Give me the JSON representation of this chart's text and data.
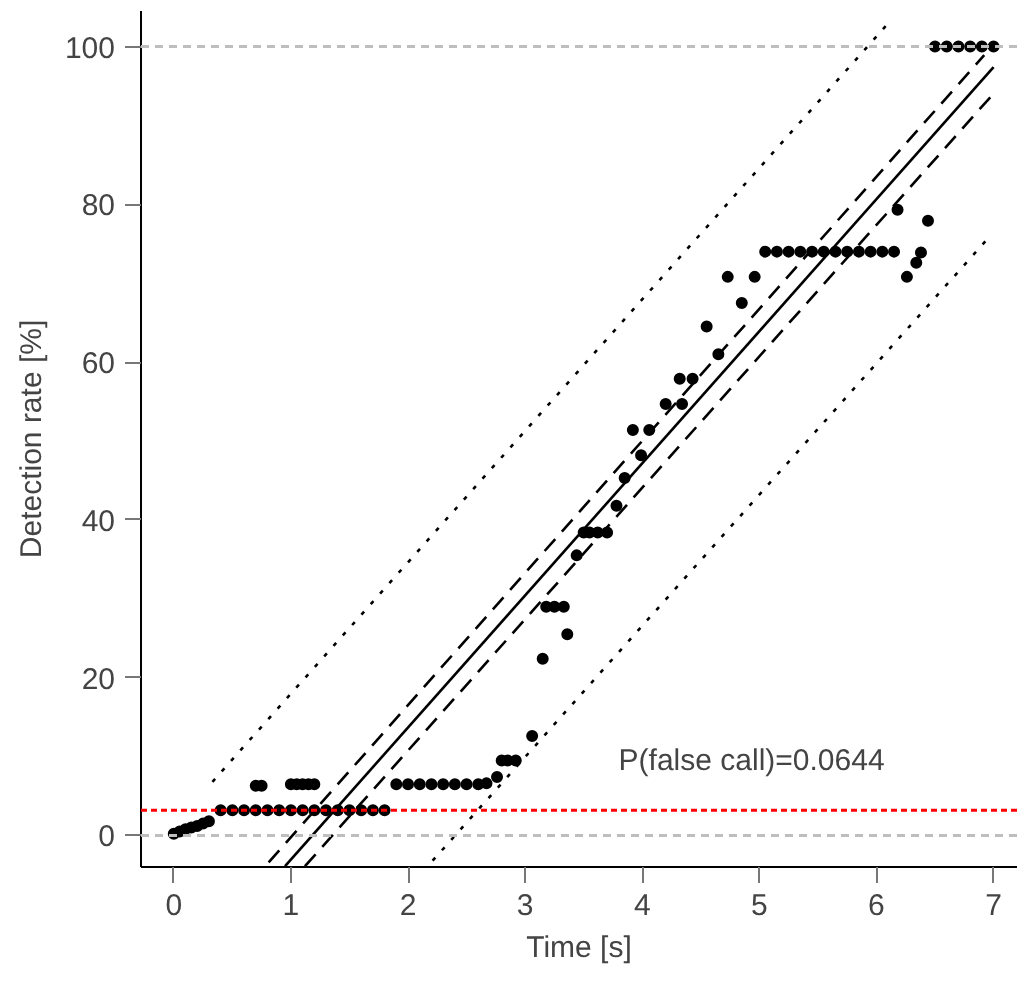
{
  "chart_data": {
    "type": "scatter",
    "xlabel": "Time [s]",
    "ylabel": "Detection rate [%]",
    "xlim": [
      -0.28,
      7.2
    ],
    "ylim": [
      -4,
      104.5
    ],
    "xticks": [
      0,
      1,
      2,
      3,
      4,
      5,
      6,
      7
    ],
    "yticks": [
      0,
      20,
      40,
      60,
      80,
      100
    ],
    "grid": false,
    "annotations": [
      "P(false call)=0.0644"
    ],
    "series": [
      {
        "marker": "circle",
        "color": "#000000",
        "x": [
          0.0,
          0.05,
          0.1,
          0.15,
          0.2,
          0.25,
          0.3,
          0.4,
          0.5,
          0.6,
          0.7,
          0.8,
          0.9,
          1.0,
          1.1,
          1.2,
          1.3,
          1.4,
          1.5,
          1.6,
          1.7,
          1.8,
          0.7,
          0.75,
          1.0,
          1.05,
          1.1,
          1.15,
          1.2,
          1.9,
          2.0,
          2.1,
          2.2,
          2.3,
          2.4,
          2.5,
          2.6,
          2.67,
          2.76,
          2.8,
          2.85,
          2.92,
          3.06,
          3.15,
          3.18,
          3.25,
          3.33,
          3.36,
          3.44,
          3.5,
          3.55,
          3.62,
          3.7,
          3.78,
          3.85,
          3.92,
          3.99,
          4.06,
          4.2,
          4.34,
          4.32,
          4.43,
          4.55,
          4.65,
          4.73,
          4.85,
          4.96,
          5.05,
          5.15,
          5.25,
          5.35,
          5.45,
          5.55,
          5.65,
          5.75,
          5.85,
          5.95,
          6.05,
          6.15,
          6.18,
          6.26,
          6.34,
          6.38,
          6.44,
          6.5,
          6.6,
          6.7,
          6.8,
          6.9,
          7.0
        ],
        "values": [
          0.2,
          0.5,
          0.8,
          1.0,
          1.2,
          1.5,
          1.8,
          3.2,
          3.2,
          3.2,
          3.2,
          3.2,
          3.2,
          3.2,
          3.2,
          3.2,
          3.2,
          3.2,
          3.2,
          3.2,
          3.2,
          3.2,
          6.3,
          6.3,
          6.5,
          6.5,
          6.5,
          6.5,
          6.5,
          6.5,
          6.5,
          6.5,
          6.5,
          6.5,
          6.5,
          6.5,
          6.5,
          6.6,
          7.4,
          9.5,
          9.5,
          9.5,
          12.6,
          22.4,
          29,
          29,
          29,
          25.5,
          35.5,
          38.4,
          38.4,
          38.4,
          38.4,
          41.8,
          45.3,
          51.4,
          48.2,
          51.4,
          54.7,
          54.7,
          57.9,
          57.9,
          64.5,
          61,
          70.8,
          67.5,
          70.8,
          74,
          74,
          74,
          74,
          74,
          74,
          74,
          74,
          74,
          74,
          74,
          74,
          79.3,
          70.8,
          72.6,
          73.9,
          77.9,
          100,
          100,
          100,
          100,
          100,
          100
        ]
      },
      {
        "type": "line",
        "color": "#000000",
        "line_style": "solid",
        "x": [
          0.95,
          7.0
        ],
        "values": [
          -3.9,
          97.4
        ]
      },
      {
        "type": "line",
        "color": "#000000",
        "line_style": "dashed",
        "x": [
          0.81,
          6.92
        ],
        "values": [
          -3.4,
          98.9
        ]
      },
      {
        "type": "line",
        "color": "#000000",
        "line_style": "dashed",
        "x": [
          1.12,
          6.98
        ],
        "values": [
          -3.9,
          93.7
        ]
      },
      {
        "type": "line",
        "color": "#000000",
        "line_style": "dotted",
        "x": [
          0.33,
          6.08
        ],
        "values": [
          6.8,
          102.6
        ]
      },
      {
        "type": "line",
        "color": "#000000",
        "line_style": "dotted",
        "x": [
          2.21,
          6.96
        ],
        "values": [
          -3.2,
          75.8
        ]
      }
    ],
    "ref_lines": [
      {
        "axis": "y",
        "value": 100,
        "color": "#bebebe",
        "line_style": "dashed"
      },
      {
        "axis": "y",
        "value": 0,
        "color": "#bebebe",
        "line_style": "dashed"
      },
      {
        "axis": "y",
        "value": 3.2,
        "color": "#ff0000",
        "line_style": "dotted"
      }
    ]
  }
}
